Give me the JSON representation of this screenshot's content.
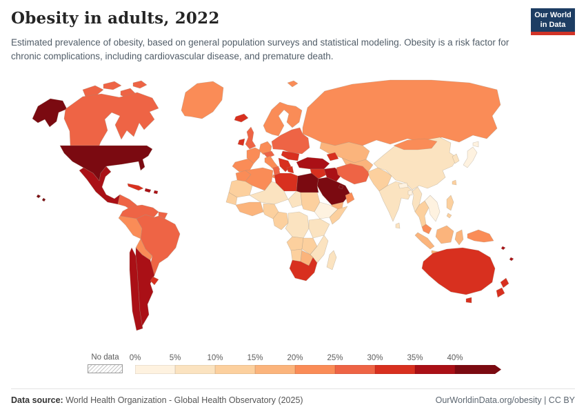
{
  "header": {
    "title": "Obesity in adults, 2022",
    "subtitle": "Estimated prevalence of obesity, based on general population surveys and statistical modeling. Obesity is a risk factor for chronic complications, including cardiovascular disease, and premature death.",
    "logo": {
      "line1": "Our World",
      "line2": "in Data",
      "bg": "#1d3d63",
      "accent": "#d13327"
    }
  },
  "legend": {
    "no_data_label": "No data",
    "ticks": [
      "0%",
      "5%",
      "10%",
      "15%",
      "20%",
      "25%",
      "30%",
      "35%",
      "40%"
    ],
    "colors": [
      "#fef2e0",
      "#fbe3c0",
      "#fcd09e",
      "#fbb47c",
      "#fa8c57",
      "#ee6445",
      "#d8301f",
      "#aa1016",
      "#7b0a11"
    ]
  },
  "footer": {
    "source_label": "Data source:",
    "source_text": " World Health Organization - Global Health Observatory (2025)",
    "link_text": "OurWorldinData.org/obesity | CC BY"
  },
  "chart_data": {
    "type": "heatmap",
    "subtype": "choropleth-world-map",
    "title": "Obesity in adults, 2022",
    "metric": "Estimated prevalence of obesity in adults",
    "unit": "%",
    "year": 2022,
    "legend_position": "bottom",
    "bin_ranges": [
      "0-5%",
      "5-10%",
      "10-15%",
      "15-20%",
      "20-25%",
      "25-30%",
      "30-35%",
      "35-40%",
      "40%+"
    ],
    "no_data_style": "diagonal-hatch",
    "regions": [
      {
        "id": "arctic-islands",
        "name": "Canadian Arctic islands",
        "bin": 5
      },
      {
        "id": "alaska",
        "name": "Alaska (United States)",
        "bin": 8
      },
      {
        "id": "canada",
        "name": "Canada",
        "bin": 5
      },
      {
        "id": "greenland",
        "name": "Greenland",
        "bin": 4
      },
      {
        "id": "usa",
        "name": "United States",
        "bin": 8
      },
      {
        "id": "hawaii",
        "name": "Hawaii (United States)",
        "bin": 8
      },
      {
        "id": "mexico",
        "name": "Mexico",
        "bin": 7
      },
      {
        "id": "central-america",
        "name": "Central America",
        "bin": 5
      },
      {
        "id": "cuba",
        "name": "Cuba",
        "bin": 6
      },
      {
        "id": "caribbean",
        "name": "Caribbean islands",
        "bin": 7
      },
      {
        "id": "colombia-venezuela",
        "name": "Colombia & Venezuela",
        "bin": 5
      },
      {
        "id": "guyanas",
        "name": "Guyanas",
        "bin": 5
      },
      {
        "id": "peru",
        "name": "Peru",
        "bin": 4
      },
      {
        "id": "brazil",
        "name": "Brazil",
        "bin": 5
      },
      {
        "id": "bolivia",
        "name": "Bolivia & Paraguay",
        "bin": 4
      },
      {
        "id": "chile",
        "name": "Chile",
        "bin": 7
      },
      {
        "id": "argentina",
        "name": "Argentina",
        "bin": 7
      },
      {
        "id": "uruguay",
        "name": "Uruguay",
        "bin": 6
      },
      {
        "id": "iceland",
        "name": "Iceland",
        "bin": 6
      },
      {
        "id": "ireland",
        "name": "Ireland",
        "bin": 6
      },
      {
        "id": "uk",
        "name": "United Kingdom",
        "bin": 5
      },
      {
        "id": "scandinavia",
        "name": "Norway, Sweden & Finland",
        "bin": 4
      },
      {
        "id": "svalbard",
        "name": "Svalbard (Norway)",
        "bin": 4
      },
      {
        "id": "russia",
        "name": "Russia",
        "bin": 4
      },
      {
        "id": "france",
        "name": "France",
        "bin": 4
      },
      {
        "id": "iberia",
        "name": "Spain & Portugal",
        "bin": 4
      },
      {
        "id": "germany",
        "name": "Germany & Benelux",
        "bin": 4
      },
      {
        "id": "eastern-europe",
        "name": "Poland, Baltics, Belarus & Ukraine",
        "bin": 5
      },
      {
        "id": "central-europe",
        "name": "Czechia & Austria",
        "bin": 5
      },
      {
        "id": "hungary-romania",
        "name": "Hungary & Romania",
        "bin": 6
      },
      {
        "id": "balkans",
        "name": "Balkans",
        "bin": 6
      },
      {
        "id": "italy",
        "name": "Italy",
        "bin": 4
      },
      {
        "id": "greece",
        "name": "Greece",
        "bin": 6
      },
      {
        "id": "turkey",
        "name": "Turkey",
        "bin": 7
      },
      {
        "id": "kazakhstan",
        "name": "Kazakhstan",
        "bin": 3
      },
      {
        "id": "central-asia",
        "name": "Central Asia",
        "bin": 3
      },
      {
        "id": "caucasus",
        "name": "Caucasus",
        "bin": 6
      },
      {
        "id": "syria-levant",
        "name": "Syria, Jordan & Israel",
        "bin": 6
      },
      {
        "id": "iraq",
        "name": "Iraq",
        "bin": 7
      },
      {
        "id": "iran",
        "name": "Iran",
        "bin": 5
      },
      {
        "id": "saudi",
        "name": "Saudi Arabia",
        "bin": 8
      },
      {
        "id": "gulf-states",
        "name": "Gulf states",
        "bin": 8
      },
      {
        "id": "yemen",
        "name": "Yemen",
        "bin": 3
      },
      {
        "id": "oman",
        "name": "Oman",
        "bin": 4
      },
      {
        "id": "morocco",
        "name": "Morocco",
        "bin": 4
      },
      {
        "id": "algeria",
        "name": "Algeria",
        "bin": 4
      },
      {
        "id": "tunisia",
        "name": "Tunisia",
        "bin": 5
      },
      {
        "id": "libya",
        "name": "Libya",
        "bin": 6
      },
      {
        "id": "egypt",
        "name": "Egypt",
        "bin": 8
      },
      {
        "id": "mauritania",
        "name": "Mauritania & Western Sahara",
        "bin": 2
      },
      {
        "id": "mali-niger",
        "name": "Mali & Niger",
        "bin": 1
      },
      {
        "id": "chad",
        "name": "Chad",
        "bin": 1
      },
      {
        "id": "sudan",
        "name": "Sudan",
        "bin": 2
      },
      {
        "id": "senegal",
        "name": "Senegal & Guinea",
        "bin": 2
      },
      {
        "id": "west-africa",
        "name": "Ghana & Cote d'Ivoire",
        "bin": 3
      },
      {
        "id": "nigeria",
        "name": "Nigeria",
        "bin": 2
      },
      {
        "id": "cameroon-congo",
        "name": "Cameroon & Congo",
        "bin": 2
      },
      {
        "id": "drc",
        "name": "Democratic Republic of Congo",
        "bin": 1
      },
      {
        "id": "ethiopia",
        "name": "Ethiopia",
        "bin": 0
      },
      {
        "id": "somalia",
        "name": "Somalia",
        "bin": 2
      },
      {
        "id": "east-africa",
        "name": "Kenya, Uganda & Tanzania",
        "bin": 1
      },
      {
        "id": "angola",
        "name": "Angola",
        "bin": 2
      },
      {
        "id": "zambia-zimbabwe",
        "name": "Zambia & Zimbabwe",
        "bin": 2
      },
      {
        "id": "mozambique",
        "name": "Mozambique",
        "bin": 1
      },
      {
        "id": "namibia",
        "name": "Namibia",
        "bin": 2
      },
      {
        "id": "botswana",
        "name": "Botswana",
        "bin": 3
      },
      {
        "id": "south-africa",
        "name": "South Africa",
        "bin": 6
      },
      {
        "id": "madagascar",
        "name": "Madagascar",
        "bin": 1
      },
      {
        "id": "af-pak",
        "name": "Afghanistan & Pakistan",
        "bin": 2
      },
      {
        "id": "india",
        "name": "India",
        "bin": 1
      },
      {
        "id": "nepal",
        "name": "Nepal",
        "bin": 0
      },
      {
        "id": "bangladesh",
        "name": "Bangladesh",
        "bin": 0
      },
      {
        "id": "sri-lanka",
        "name": "Sri Lanka",
        "bin": 1
      },
      {
        "id": "myanmar",
        "name": "Myanmar",
        "bin": 1
      },
      {
        "id": "thailand",
        "name": "Thailand",
        "bin": 2
      },
      {
        "id": "indochina",
        "name": "Vietnam, Laos & Cambodia",
        "bin": 0
      },
      {
        "id": "malaysia",
        "name": "Malaysia",
        "bin": 4
      },
      {
        "id": "sumatra",
        "name": "Indonesia (Sumatra)",
        "bin": 3
      },
      {
        "id": "java",
        "name": "Indonesia (Java)",
        "bin": 3
      },
      {
        "id": "borneo",
        "name": "Borneo",
        "bin": 3
      },
      {
        "id": "sulawesi",
        "name": "Indonesia (Sulawesi)",
        "bin": 3
      },
      {
        "id": "philippines",
        "name": "Philippines",
        "bin": 2
      },
      {
        "id": "china",
        "name": "China",
        "bin": 1
      },
      {
        "id": "mongolia",
        "name": "Mongolia",
        "bin": 4
      },
      {
        "id": "korea",
        "name": "Korea",
        "bin": 1
      },
      {
        "id": "japan",
        "name": "Japan",
        "bin": 0
      },
      {
        "id": "taiwan",
        "name": "Taiwan",
        "bin": 2
      },
      {
        "id": "new-guinea",
        "name": "Papua New Guinea",
        "bin": 4
      },
      {
        "id": "australia",
        "name": "Australia",
        "bin": 6
      },
      {
        "id": "tasmania",
        "name": "Tasmania (Australia)",
        "bin": 6
      },
      {
        "id": "new-zealand",
        "name": "New Zealand",
        "bin": 6
      },
      {
        "id": "pacific-islands",
        "name": "Pacific islands",
        "bin": 7
      }
    ]
  }
}
